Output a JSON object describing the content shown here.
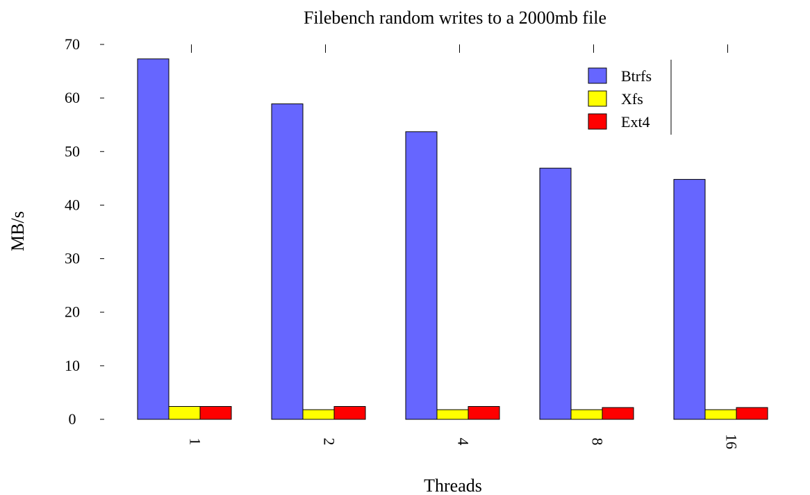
{
  "chart_data": {
    "type": "bar",
    "title": "Filebench random writes to a 2000mb file",
    "xlabel": "Threads",
    "ylabel": "MB/s",
    "categories": [
      "1",
      "2",
      "4",
      "8",
      "16"
    ],
    "series": [
      {
        "name": "Btrfs",
        "color": "#6666ff",
        "values": [
          67.3,
          58.9,
          53.7,
          46.9,
          44.8
        ]
      },
      {
        "name": "Xfs",
        "color": "#ffff00",
        "values": [
          2.4,
          1.8,
          1.8,
          1.8,
          1.8
        ]
      },
      {
        "name": "Ext4",
        "color": "#ff0000",
        "values": [
          2.4,
          2.4,
          2.4,
          2.2,
          2.2
        ]
      }
    ],
    "ylim": [
      0,
      70
    ],
    "yticks": [
      "0",
      "10",
      "20",
      "30",
      "40",
      "50",
      "60",
      "70"
    ],
    "grid": false,
    "legend": "top-right"
  }
}
